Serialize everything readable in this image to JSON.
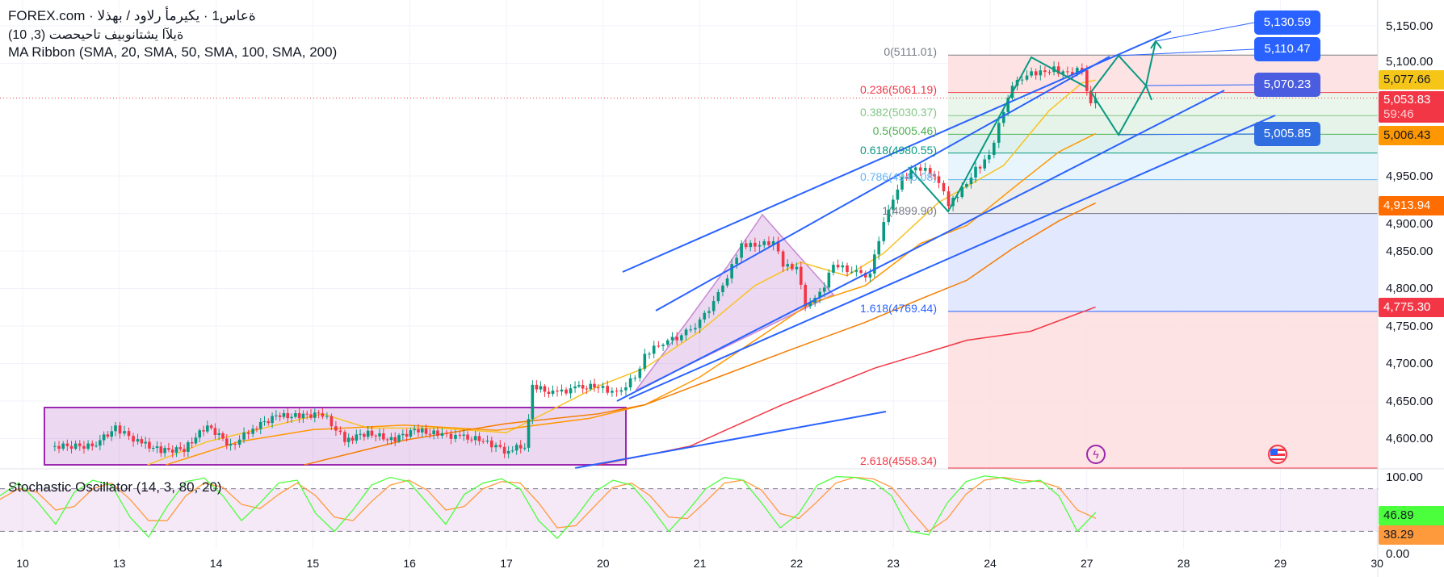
{
  "legend": {
    "symbol_line": "FOREX.com · ةعاس1 · يكيرمأ رلاود / بهذلا",
    "indicator_line": "ةيلآا يشتانوبيف تاحيحصت (3, 10)",
    "ma_ribbon": "MA Ribbon (SMA, 20, SMA, 50, SMA, 100, SMA, 200)",
    "stochastic": "Stochastic Oscillator (14, 3, 80, 20)"
  },
  "colors": {
    "up": "#089981",
    "down": "#f23645",
    "channel": "#2962ff",
    "sma20": "#f7c325",
    "sma50": "#ff9800",
    "sma100": "#f57c00",
    "sma200": "#f23645",
    "stoch_k": "#4cff3c",
    "stoch_d": "#ff9a3c",
    "pattern": "#9c27b0",
    "zigzag": "#089981"
  },
  "price_axis": [
    "5,150.00",
    "5,100.00",
    "4,950.00",
    "4,900.00",
    "4,850.00",
    "4,800.00",
    "4,750.00",
    "4,700.00",
    "4,650.00",
    "4,600.00"
  ],
  "price_axis_values": [
    5150,
    5100,
    4950,
    4900,
    4850,
    4800,
    4750,
    4700,
    4650,
    4600
  ],
  "stoch_axis": [
    "100.00",
    "0.00"
  ],
  "time_axis": [
    "10",
    "13",
    "14",
    "15",
    "16",
    "17",
    "20",
    "21",
    "22",
    "23",
    "24",
    "27",
    "28",
    "29",
    "30"
  ],
  "badges": {
    "sma20": "5,077.66",
    "last_price": "5,053.83",
    "countdown": "59:46",
    "sma50": "5,006.43",
    "sma100": "4,913.94",
    "sma200": "4,775.30",
    "stoch_k": "46.89",
    "stoch_d": "38.29"
  },
  "drawing_labels": [
    "5,130.59",
    "5,110.47",
    "5,070.23",
    "5,005.85"
  ],
  "fib_levels": [
    {
      "label": "0(5111.01)",
      "ratio": 0,
      "price": 5111.01,
      "color": "#787b86",
      "fill": "#fde0e0"
    },
    {
      "label": "0.236(5061.19)",
      "ratio": 0.236,
      "price": 5061.19,
      "color": "#f23645",
      "fill": "#e8f5e9"
    },
    {
      "label": "0.382(5030.37)",
      "ratio": 0.382,
      "price": 5030.37,
      "color": "#81c784",
      "fill": "#e3f2e6"
    },
    {
      "label": "0.5(5005.46)",
      "ratio": 0.5,
      "price": 5005.46,
      "color": "#4caf50",
      "fill": "#dcefec"
    },
    {
      "label": "0.618(4980.55)",
      "ratio": 0.618,
      "price": 4980.55,
      "color": "#089981",
      "fill": "#e6f4fc"
    },
    {
      "label": "0.786(4945.08)",
      "ratio": 0.786,
      "price": 4945.08,
      "color": "#64b5f6",
      "fill": "#ebebeb"
    },
    {
      "label": "1(4899.90)",
      "ratio": 1,
      "price": 4899.9,
      "color": "#787b86",
      "fill": "#dfe6fd"
    },
    {
      "label": "1.618(4769.44)",
      "ratio": 1.618,
      "price": 4769.44,
      "color": "#2962ff",
      "fill": "#fde0e0"
    },
    {
      "label": "2.618(4558.34)",
      "ratio": 2.618,
      "price": 4558.34,
      "color": "#f23645",
      "fill": "#fde0e0"
    }
  ],
  "last_price": 5053.83,
  "chart_data": {
    "type": "candlestick",
    "x_ticks": [
      "10",
      "13",
      "14",
      "15",
      "16",
      "17",
      "20",
      "21",
      "22",
      "23",
      "24",
      "27",
      "28",
      "29",
      "30"
    ],
    "ylim": [
      4560,
      5170
    ],
    "close_path": [
      [
        0.29,
        4590
      ],
      [
        0.72,
        4590
      ],
      [
        0.96,
        4614
      ],
      [
        1.19,
        4596
      ],
      [
        1.43,
        4584
      ],
      [
        1.67,
        4586
      ],
      [
        1.91,
        4618
      ],
      [
        2.15,
        4590
      ],
      [
        2.38,
        4614
      ],
      [
        2.62,
        4630
      ],
      [
        2.86,
        4630
      ],
      [
        3.1,
        4633
      ],
      [
        3.33,
        4598
      ],
      [
        3.57,
        4608
      ],
      [
        3.81,
        4598
      ],
      [
        4.05,
        4611
      ],
      [
        4.29,
        4606
      ],
      [
        4.52,
        4602
      ],
      [
        4.76,
        4598
      ],
      [
        4.98,
        4584
      ],
      [
        5.19,
        4590
      ],
      [
        5.27,
        4670
      ],
      [
        5.48,
        4660
      ],
      [
        5.71,
        4667
      ],
      [
        5.95,
        4670
      ],
      [
        6.14,
        4660
      ],
      [
        6.33,
        4682
      ],
      [
        6.43,
        4712
      ],
      [
        6.62,
        4728
      ],
      [
        6.81,
        4737
      ],
      [
        7.0,
        4755
      ],
      [
        7.19,
        4792
      ],
      [
        7.33,
        4829
      ],
      [
        7.43,
        4860
      ],
      [
        7.57,
        4856
      ],
      [
        7.76,
        4863
      ],
      [
        7.86,
        4829
      ],
      [
        8.0,
        4829
      ],
      [
        8.09,
        4780
      ],
      [
        8.24,
        4792
      ],
      [
        8.38,
        4831
      ],
      [
        8.57,
        4823
      ],
      [
        8.76,
        4817
      ],
      [
        8.85,
        4866
      ],
      [
        8.95,
        4909
      ],
      [
        9.09,
        4945
      ],
      [
        9.23,
        4960
      ],
      [
        9.38,
        4955
      ],
      [
        9.47,
        4939
      ],
      [
        9.57,
        4912
      ],
      [
        9.71,
        4933
      ],
      [
        9.85,
        4958
      ],
      [
        9.99,
        4976
      ],
      [
        10.14,
        5037
      ],
      [
        10.23,
        5068
      ],
      [
        10.38,
        5086
      ],
      [
        10.52,
        5089
      ],
      [
        10.66,
        5092
      ],
      [
        10.8,
        5086
      ],
      [
        10.95,
        5092
      ],
      [
        11.0,
        5062
      ],
      [
        11.04,
        5043
      ],
      [
        11.09,
        5053.83
      ]
    ],
    "moving_averages": [
      {
        "name": "SMA 20",
        "color": "#f7c325",
        "points": [
          [
            1.29,
            4565
          ],
          [
            1.91,
            4596
          ],
          [
            2.62,
            4618
          ],
          [
            3.1,
            4633
          ],
          [
            3.57,
            4614
          ],
          [
            4.29,
            4614
          ],
          [
            5.0,
            4608
          ],
          [
            5.48,
            4639
          ],
          [
            5.95,
            4670
          ],
          [
            6.43,
            4694
          ],
          [
            7.0,
            4743
          ],
          [
            7.57,
            4804
          ],
          [
            8.04,
            4835
          ],
          [
            8.52,
            4817
          ],
          [
            8.9,
            4847
          ],
          [
            9.47,
            4915
          ],
          [
            10.14,
            4964
          ],
          [
            10.61,
            5037
          ],
          [
            10.95,
            5074
          ],
          [
            11.09,
            5077.66
          ]
        ]
      },
      {
        "name": "SMA 50",
        "color": "#ff9800",
        "points": [
          [
            1.48,
            4565
          ],
          [
            2.24,
            4596
          ],
          [
            3.0,
            4612
          ],
          [
            3.95,
            4618
          ],
          [
            4.9,
            4611
          ],
          [
            5.86,
            4627
          ],
          [
            6.43,
            4645
          ],
          [
            7.0,
            4682
          ],
          [
            7.57,
            4731
          ],
          [
            8.14,
            4780
          ],
          [
            8.71,
            4804
          ],
          [
            9.28,
            4860
          ],
          [
            9.76,
            4884
          ],
          [
            10.23,
            4933
          ],
          [
            10.71,
            4982
          ],
          [
            11.09,
            5006.43
          ]
        ]
      },
      {
        "name": "SMA 100",
        "color": "#f57c00",
        "points": [
          [
            2.91,
            4565
          ],
          [
            3.95,
            4598
          ],
          [
            5.0,
            4620
          ],
          [
            5.95,
            4633
          ],
          [
            6.43,
            4645
          ],
          [
            7.19,
            4682
          ],
          [
            7.95,
            4719
          ],
          [
            8.71,
            4755
          ],
          [
            9.28,
            4786
          ],
          [
            9.76,
            4811
          ],
          [
            10.23,
            4853
          ],
          [
            10.71,
            4890
          ],
          [
            11.09,
            4913.94
          ]
        ]
      },
      {
        "name": "SMA 200",
        "color": "#f23645",
        "points": [
          [
            5.95,
            4565
          ],
          [
            6.9,
            4590
          ],
          [
            7.85,
            4645
          ],
          [
            8.81,
            4694
          ],
          [
            9.76,
            4731
          ],
          [
            10.42,
            4743
          ],
          [
            11.09,
            4775.3
          ]
        ]
      }
    ],
    "stochastic": {
      "upper": 80,
      "lower": 20,
      "ylim": [
        0,
        100
      ],
      "k": [
        70,
        88,
        62,
        30,
        75,
        92,
        85,
        40,
        12,
        55,
        90,
        95,
        70,
        35,
        60,
        88,
        92,
        45,
        20,
        50,
        85,
        96,
        90,
        60,
        30,
        72,
        88,
        94,
        80,
        35,
        10,
        40,
        75,
        92,
        85,
        55,
        20,
        48,
        80,
        96,
        92,
        60,
        25,
        45,
        85,
        97,
        96,
        90,
        70,
        20,
        15,
        60,
        90,
        98,
        95,
        88,
        92,
        70,
        20,
        46.89
      ],
      "d": [
        65,
        80,
        75,
        50,
        55,
        80,
        88,
        65,
        35,
        35,
        70,
        88,
        82,
        58,
        52,
        72,
        88,
        70,
        40,
        35,
        62,
        85,
        92,
        78,
        50,
        55,
        80,
        90,
        88,
        60,
        25,
        28,
        55,
        82,
        88,
        70,
        40,
        38,
        62,
        88,
        92,
        78,
        45,
        38,
        62,
        88,
        96,
        94,
        82,
        50,
        20,
        38,
        72,
        92,
        96,
        92,
        90,
        82,
        50,
        38.29
      ]
    }
  }
}
